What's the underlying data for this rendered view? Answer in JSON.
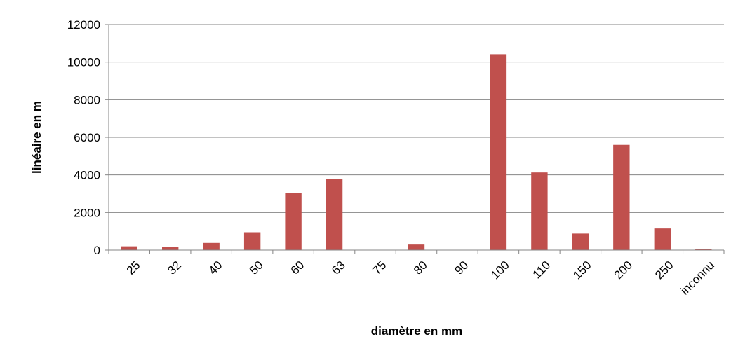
{
  "chart_data": {
    "type": "bar",
    "title": "",
    "xlabel": "diamètre en mm",
    "ylabel": "linéaire en m",
    "categories": [
      "25",
      "32",
      "40",
      "50",
      "60",
      "63",
      "75",
      "80",
      "90",
      "100",
      "110",
      "150",
      "200",
      "250",
      "inconnu"
    ],
    "values": [
      200,
      150,
      380,
      950,
      3050,
      3800,
      0,
      330,
      0,
      10420,
      4130,
      880,
      5600,
      1150,
      70
    ],
    "ylim": [
      0,
      12000
    ],
    "yticks": [
      0,
      2000,
      4000,
      6000,
      8000,
      10000,
      12000
    ],
    "grid": true,
    "legend": "none",
    "bar_color": "#c0504d",
    "grid_color": "#868686"
  }
}
